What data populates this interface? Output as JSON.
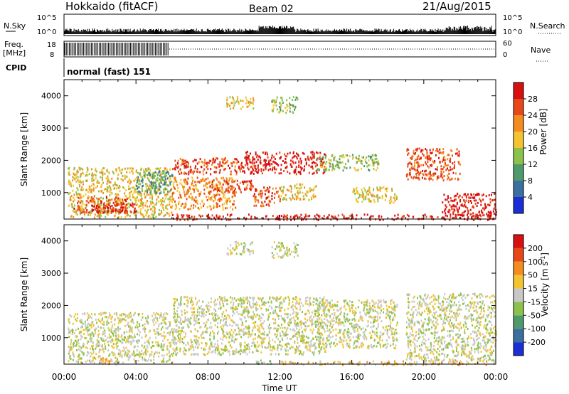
{
  "header": {
    "station": "Hokkaido (fitACF)",
    "beam": "Beam 02",
    "date": "21/Aug/2015"
  },
  "panels": {
    "nsky_label": "N.Sky",
    "nsearch_label": "N.Search",
    "nsky_ticks": [
      "10^5",
      "10^0"
    ],
    "nsearch_ticks": [
      "10^5",
      "10^0"
    ],
    "freq_label_1": "Freq.",
    "freq_label_2": "[MHz]",
    "freq_ticks": [
      "18",
      "8"
    ],
    "nave_label": "Nave",
    "nave_ticks": [
      "60",
      "0"
    ],
    "cpid_label": "CPID",
    "cpid_text": "normal (fast) 151"
  },
  "chart_data": [
    {
      "type": "heatmap",
      "title": "",
      "xlabel": "Time UT",
      "ylabel": "Slant Range [km]",
      "x_ticks": [
        "00:00",
        "04:00",
        "08:00",
        "12:00",
        "16:00",
        "20:00",
        "00:00"
      ],
      "y_ticks": [
        1000,
        2000,
        3000,
        4000
      ],
      "xlim_hours": [
        0,
        24
      ],
      "ylim_km": [
        180,
        4500
      ],
      "colorbar_label": "Power [dB]",
      "colorbar_ticks": [
        4,
        8,
        12,
        16,
        20,
        24,
        28
      ],
      "colorbar_colors": [
        "#1a2fd6",
        "#3a6fa0",
        "#4f9a6a",
        "#8bc34a",
        "#f4c430",
        "#f48c20",
        "#e84818",
        "#d81010"
      ],
      "regions": [
        {
          "t0": 0.2,
          "t1": 6.0,
          "r0": 250,
          "r1": 1800,
          "c": 4
        },
        {
          "t0": 0.5,
          "t1": 3.5,
          "r0": 400,
          "r1": 900,
          "c": 6
        },
        {
          "t0": 1.5,
          "t1": 4.0,
          "r0": 400,
          "r1": 700,
          "c": 7
        },
        {
          "t0": 4.0,
          "t1": 6.0,
          "r0": 1000,
          "r1": 1700,
          "c": 2
        },
        {
          "t0": 6.0,
          "t1": 10.0,
          "r0": 1600,
          "r1": 2100,
          "c": 6
        },
        {
          "t0": 6.0,
          "t1": 9.5,
          "r0": 500,
          "r1": 1500,
          "c": 5
        },
        {
          "t0": 8.0,
          "t1": 10.5,
          "r0": 1000,
          "r1": 1400,
          "c": 6
        },
        {
          "t0": 10.0,
          "t1": 14.5,
          "r0": 1600,
          "r1": 2300,
          "c": 7
        },
        {
          "t0": 10.5,
          "t1": 12.0,
          "r0": 600,
          "r1": 1200,
          "c": 6
        },
        {
          "t0": 12.0,
          "t1": 14.0,
          "r0": 800,
          "r1": 1300,
          "c": 4
        },
        {
          "t0": 14.0,
          "t1": 17.5,
          "r0": 1700,
          "r1": 2200,
          "c": 3
        },
        {
          "t0": 16.0,
          "t1": 18.5,
          "r0": 700,
          "r1": 1200,
          "c": 4
        },
        {
          "t0": 19.0,
          "t1": 22.0,
          "r0": 1400,
          "r1": 2400,
          "c": 6
        },
        {
          "t0": 21.0,
          "t1": 24.0,
          "r0": 300,
          "r1": 1000,
          "c": 7
        },
        {
          "t0": 6.0,
          "t1": 24.0,
          "r0": 180,
          "r1": 350,
          "c": 7
        },
        {
          "t0": 9.0,
          "t1": 10.5,
          "r0": 3600,
          "r1": 4000,
          "c": 4
        },
        {
          "t0": 11.5,
          "t1": 13.0,
          "r0": 3500,
          "r1": 4000,
          "c": 3
        }
      ]
    },
    {
      "type": "heatmap",
      "title": "",
      "xlabel": "Time UT",
      "ylabel": "Slant Range [km]",
      "x_ticks": [
        "00:00",
        "04:00",
        "08:00",
        "12:00",
        "16:00",
        "20:00",
        "00:00"
      ],
      "y_ticks": [
        1000,
        2000,
        3000,
        4000
      ],
      "xlim_hours": [
        0,
        24
      ],
      "ylim_km": [
        180,
        4500
      ],
      "colorbar_label": "Velocity [m s^-1]",
      "colorbar_ticks": [
        "200",
        "100",
        "50",
        "15",
        "-15",
        "-50",
        "-100",
        "-200"
      ],
      "colorbar_colors": [
        "#1a2fd6",
        "#3a6fa0",
        "#4f9a6a",
        "#8bc34a",
        "#c8c8c8",
        "#f4c430",
        "#f48c20",
        "#e84818",
        "#d81010"
      ],
      "regions": [
        {
          "t0": 0.2,
          "t1": 6.0,
          "r0": 250,
          "r1": 1800,
          "c": 4
        },
        {
          "t0": 6.0,
          "t1": 14.5,
          "r0": 500,
          "r1": 2300,
          "c": 4
        },
        {
          "t0": 14.0,
          "t1": 18.5,
          "r0": 700,
          "r1": 2200,
          "c": 4
        },
        {
          "t0": 19.0,
          "t1": 24.0,
          "r0": 300,
          "r1": 2400,
          "c": 4
        },
        {
          "t0": 2.0,
          "t1": 3.0,
          "r0": 200,
          "r1": 400,
          "c": 5
        },
        {
          "t0": 10.5,
          "t1": 11.5,
          "r0": 200,
          "r1": 350,
          "c": 3
        },
        {
          "t0": 12.0,
          "t1": 24.0,
          "r0": 180,
          "r1": 300,
          "c": 5
        },
        {
          "t0": 9.0,
          "t1": 10.5,
          "r0": 3600,
          "r1": 4000,
          "c": 4
        },
        {
          "t0": 11.5,
          "t1": 13.0,
          "r0": 3500,
          "r1": 4000,
          "c": 4
        }
      ]
    }
  ]
}
